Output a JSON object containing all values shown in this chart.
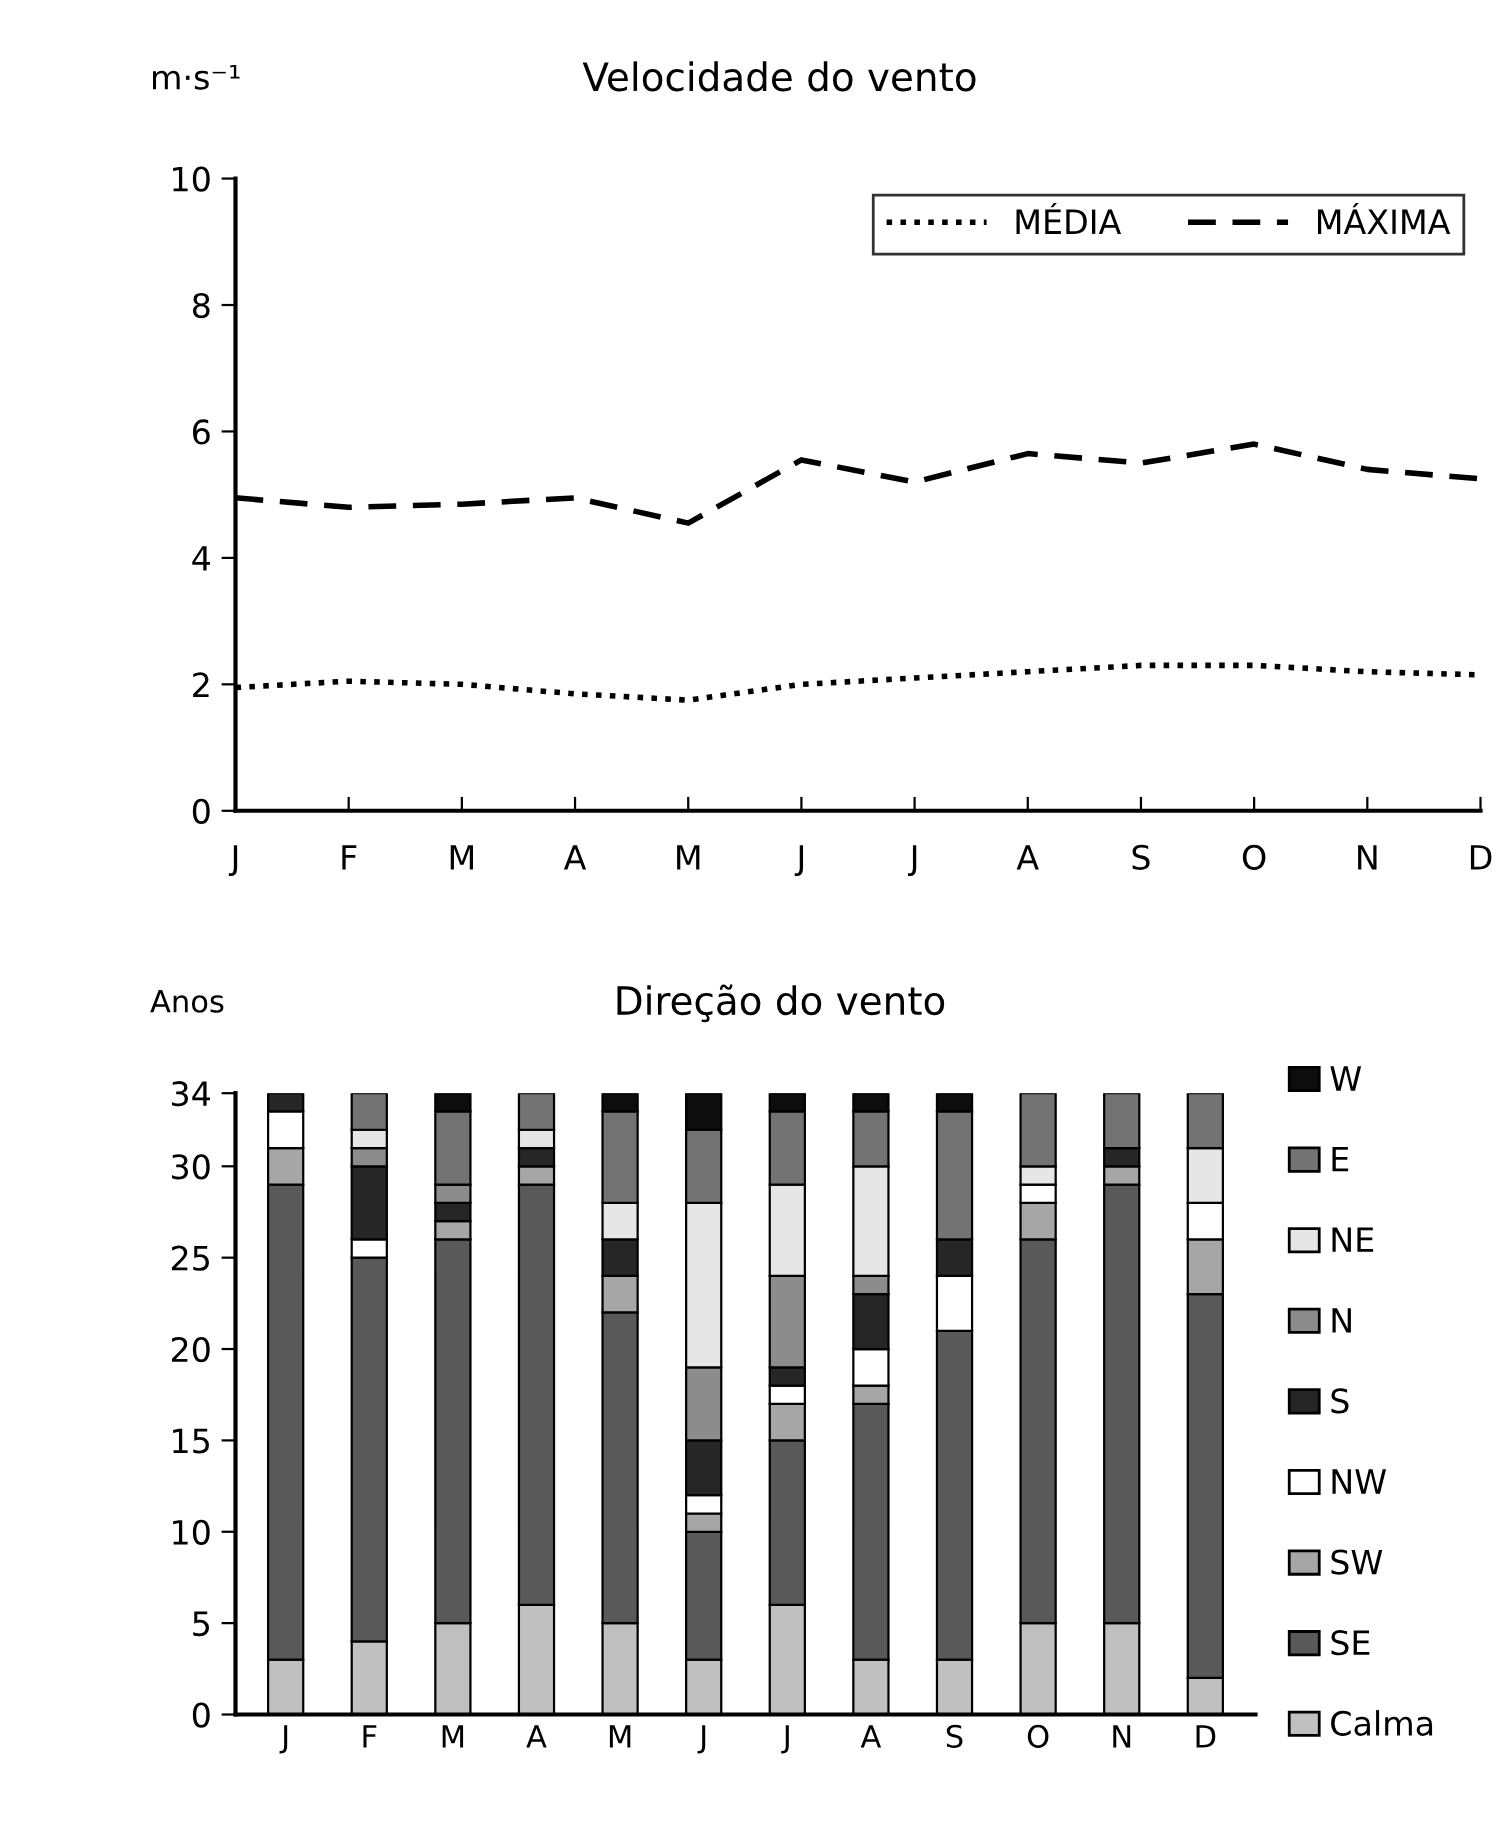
{
  "chart_data": [
    {
      "type": "line",
      "title": "Velocidade do vento",
      "ylabel": "m·s⁻¹",
      "categories": [
        "J",
        "F",
        "M",
        "A",
        "M",
        "J",
        "J",
        "A",
        "S",
        "O",
        "N",
        "D"
      ],
      "series": [
        {
          "name": "MÉDIA",
          "color": "#000000",
          "line_style": "dotted",
          "values": [
            1.95,
            2.05,
            2.0,
            1.85,
            1.75,
            2.0,
            2.1,
            2.2,
            2.3,
            2.3,
            2.2,
            2.15
          ]
        },
        {
          "name": "MÁXIMA",
          "color": "#000000",
          "line_style": "dashed",
          "values": [
            4.95,
            4.8,
            4.85,
            4.95,
            4.55,
            5.55,
            5.2,
            5.65,
            5.5,
            5.8,
            5.4,
            5.25
          ]
        }
      ],
      "ylim": [
        0,
        10
      ],
      "yticks": [
        0,
        2,
        4,
        6,
        8,
        10
      ],
      "grid": false,
      "legend": "top right",
      "marker": "none"
    },
    {
      "type": "bar",
      "stacked": true,
      "title": "Direção do vento",
      "ylabel": "Anos",
      "categories": [
        "J",
        "F",
        "M",
        "A",
        "M",
        "J",
        "J",
        "A",
        "S",
        "O",
        "N",
        "D"
      ],
      "series": [
        {
          "name": "Calma",
          "color": "#c0c0c0",
          "values": [
            3,
            4,
            5,
            6,
            5,
            3,
            6,
            3,
            3,
            5,
            5,
            2
          ]
        },
        {
          "name": "SE",
          "color": "#595959",
          "values": [
            26,
            21,
            21,
            23,
            17,
            7,
            9,
            14,
            18,
            21,
            24,
            21
          ]
        },
        {
          "name": "SW",
          "color": "#a6a6a6",
          "values": [
            2,
            0,
            1,
            1,
            2,
            1,
            2,
            1,
            0,
            2,
            1,
            3
          ]
        },
        {
          "name": "NW",
          "color": "#ffffff",
          "values": [
            2,
            1,
            0,
            0,
            0,
            1,
            1,
            2,
            3,
            1,
            0,
            2
          ]
        },
        {
          "name": "S",
          "color": "#262626",
          "values": [
            1,
            4,
            1,
            1,
            2,
            3,
            1,
            3,
            2,
            0,
            1,
            0
          ]
        },
        {
          "name": "N",
          "color": "#8c8c8c",
          "values": [
            0,
            1,
            1,
            0,
            0,
            4,
            5,
            1,
            0,
            0,
            0,
            0
          ]
        },
        {
          "name": "NE",
          "color": "#e6e6e6",
          "values": [
            0,
            1,
            0,
            1,
            2,
            9,
            5,
            6,
            0,
            1,
            0,
            3
          ]
        },
        {
          "name": "E",
          "color": "#737373",
          "values": [
            0,
            2,
            4,
            2,
            5,
            4,
            4,
            3,
            7,
            4,
            3,
            3
          ]
        },
        {
          "name": "W",
          "color": "#0d0d0d",
          "values": [
            0,
            0,
            1,
            0,
            1,
            2,
            1,
            1,
            1,
            0,
            0,
            0
          ]
        }
      ],
      "ylim": [
        0,
        34
      ],
      "yticks": [
        0,
        5,
        10,
        15,
        20,
        25,
        30,
        34
      ],
      "grid": false,
      "legend": "right"
    }
  ]
}
